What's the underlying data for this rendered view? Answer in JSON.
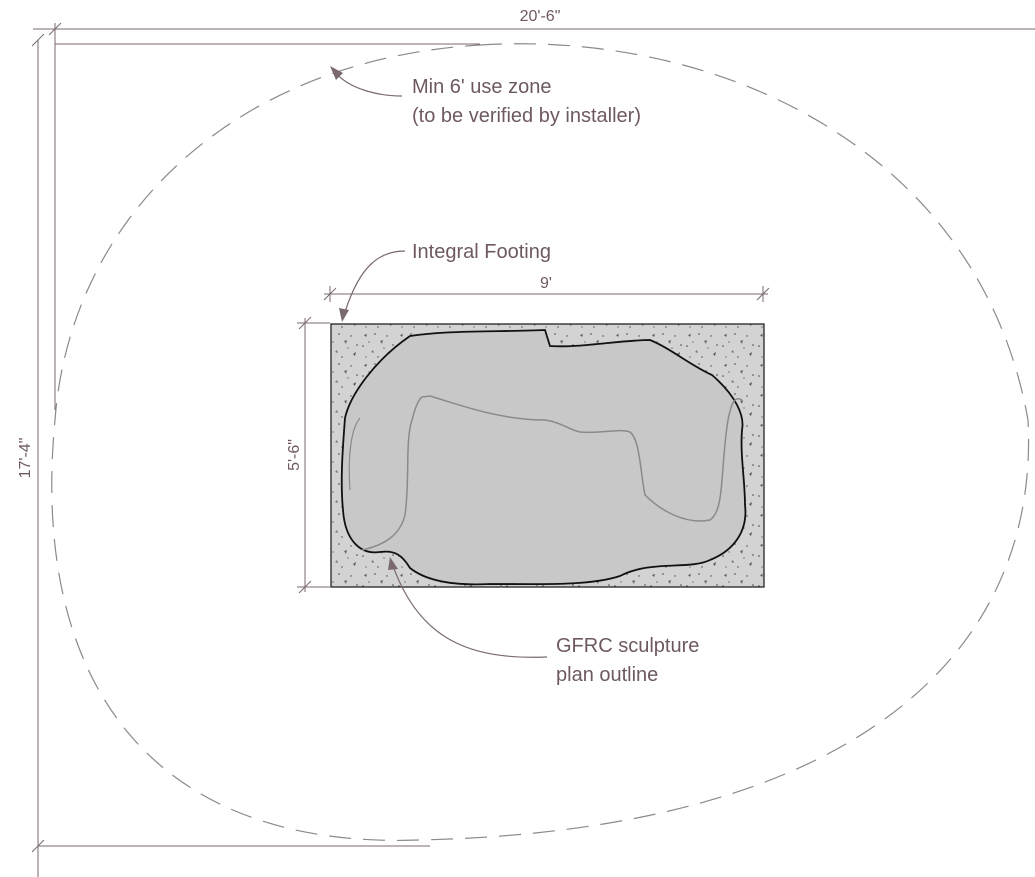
{
  "dimensions": {
    "overall_width": "20'-6\"",
    "overall_depth": "17'-4\"",
    "footing_width": "9'",
    "footing_depth": "5'-6\""
  },
  "notes": {
    "use_zone_line1": "Min 6' use zone",
    "use_zone_line2": "(to be verified by installer)",
    "footing": "Integral Footing",
    "sculpture_line1": "GFRC sculpture",
    "sculpture_line2": "plan outline"
  },
  "colors": {
    "annotation": "#6e5a5e",
    "concrete": "#d3d3d3",
    "sculpture": "#c8c8c8",
    "outline": "#111111",
    "use_zone": "#8a8a8a"
  }
}
